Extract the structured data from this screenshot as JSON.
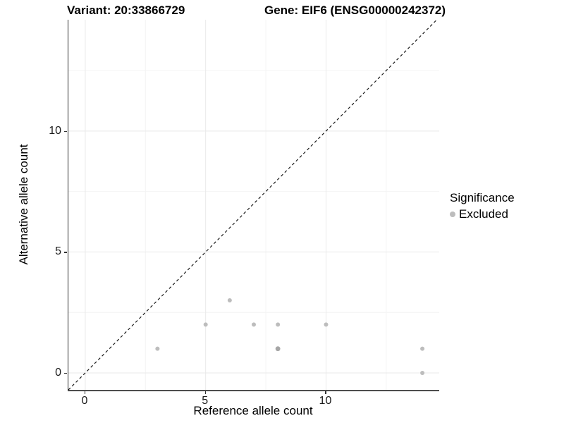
{
  "header": {
    "variant_title": "Variant: 20:33866729",
    "gene_title": "Gene: EIF6 (ENSG00000242372)"
  },
  "legend": {
    "title": "Significance",
    "items": [
      {
        "label": "Excluded",
        "color": "#bdbdbd"
      }
    ]
  },
  "chart_data": {
    "type": "scatter",
    "title_left": "Variant: 20:33866729",
    "title_right": "Gene: EIF6 (ENSG00000242372)",
    "xlabel": "Reference allele count",
    "ylabel": "Alternative allele count",
    "xlim": [
      -0.7,
      14.7
    ],
    "ylim": [
      -0.7,
      14.6
    ],
    "x_ticks": [
      0,
      5,
      10
    ],
    "y_ticks": [
      0,
      5,
      10
    ],
    "x_minor_gridlines": [
      2.5,
      7.5,
      12.5
    ],
    "y_minor_gridlines": [
      2.5,
      7.5,
      12.5
    ],
    "grid": true,
    "legend_position": "right",
    "identity_line": {
      "style": "dashed",
      "from": [
        -0.7,
        -0.7
      ],
      "to": [
        14.7,
        14.7
      ]
    },
    "series": [
      {
        "name": "Excluded",
        "color": "#bdbdbd",
        "points": [
          [
            3,
            1
          ],
          [
            5,
            2
          ],
          [
            6,
            3
          ],
          [
            7,
            2
          ],
          [
            8,
            2
          ],
          [
            8,
            1
          ],
          [
            10,
            2
          ],
          [
            14,
            1
          ],
          [
            14,
            0
          ]
        ]
      }
    ],
    "darker_overlap_points": [
      [
        8,
        1
      ]
    ]
  },
  "colors": {
    "point": "#bdbdbd",
    "point_overlap": "#a6a6a6",
    "grid_major": "#e9e9e9",
    "grid_minor": "#f4f4f4",
    "dashed_line": "#1a1a1a",
    "axis_line": "#333333",
    "background": "#ffffff"
  }
}
